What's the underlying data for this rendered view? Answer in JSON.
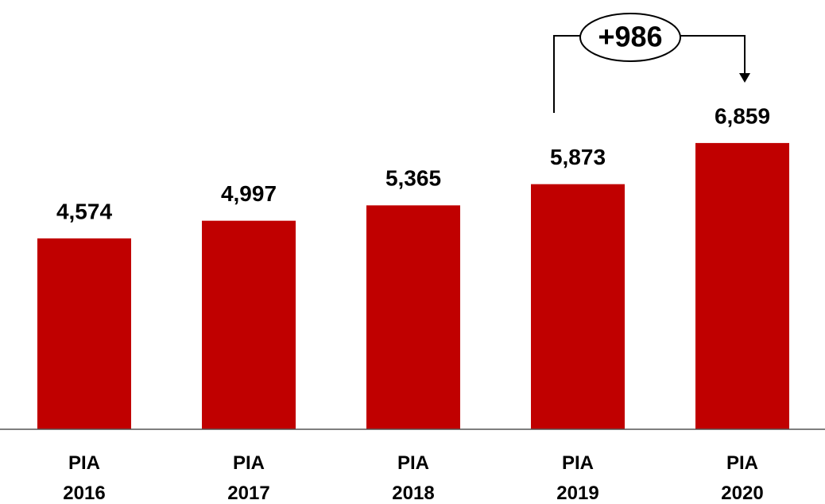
{
  "chart_data": {
    "type": "bar",
    "categories": [
      "PIA 2016",
      "PIA 2017",
      "PIA 2018",
      "PIA 2019",
      "PIA 2020"
    ],
    "values": [
      4574,
      4997,
      5365,
      5873,
      6859
    ],
    "value_labels": [
      "4,574",
      "4,997",
      "5,365",
      "5,873",
      "6,859"
    ],
    "color": "#c00000",
    "ylim": [
      0,
      10000
    ],
    "annotation": "+986"
  }
}
